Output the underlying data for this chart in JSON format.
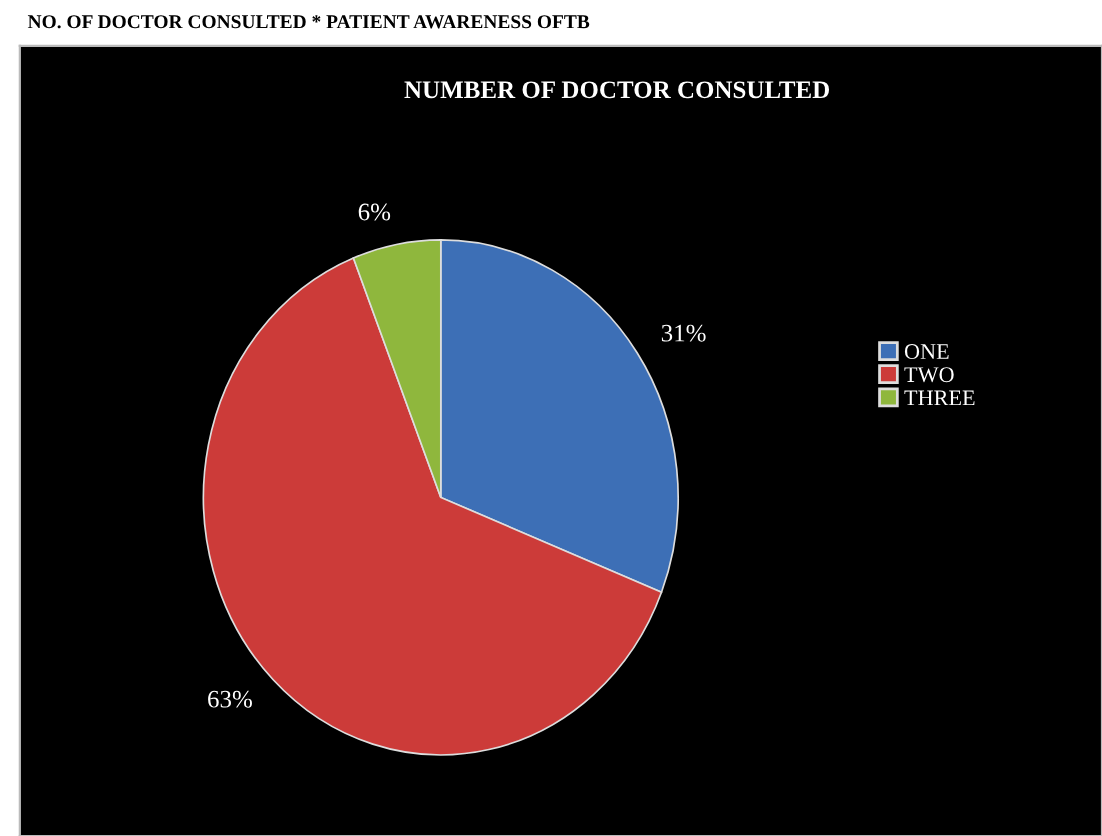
{
  "chart_data": {
    "type": "pie",
    "title": "NO. OF DOCTOR CONSULTED * PATIENT AWARENESS OFTB",
    "subtitle": "NUMBER OF DOCTOR CONSULTED",
    "categories": [
      "ONE",
      "TWO",
      "THREE"
    ],
    "values": [
      31,
      63,
      6
    ],
    "value_labels": [
      "31%",
      "63%",
      "6%"
    ],
    "colors": [
      "#3d6fb6",
      "#cc3b39",
      "#8fb73d"
    ],
    "legend": "right"
  }
}
